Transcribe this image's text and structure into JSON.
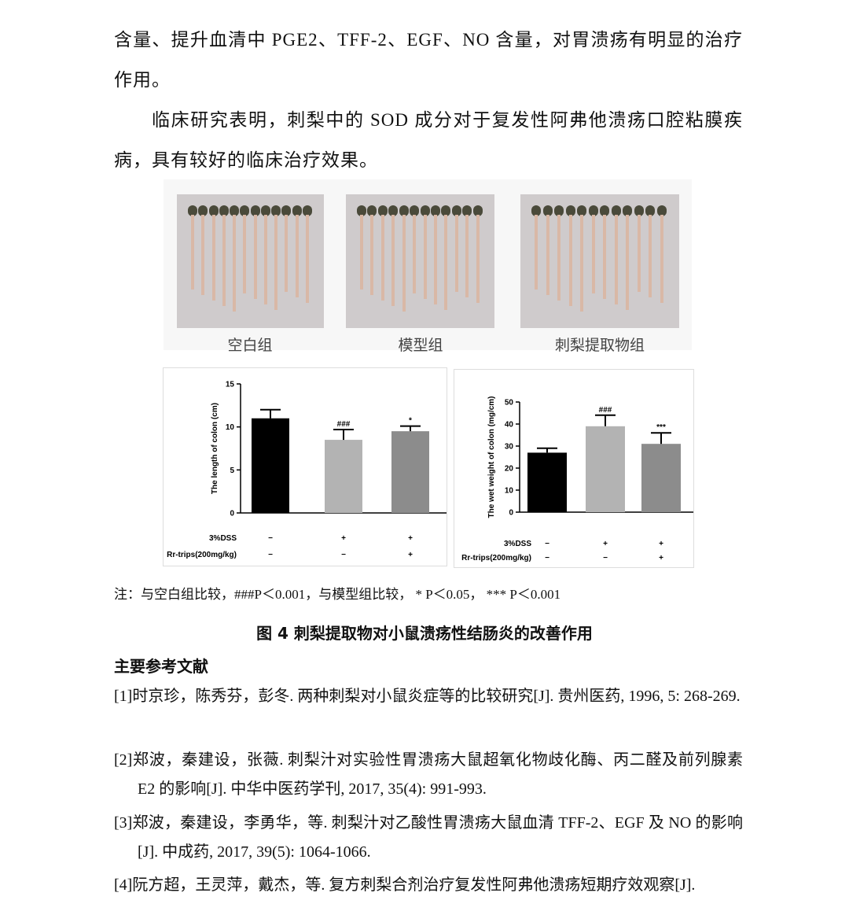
{
  "paragraphs": [
    "含量、提升血清中 PGE2、TFF-2、EGF、NO 含量，对胃溃疡有明显的治疗作用。",
    "临床研究表明，刺梨中的 SOD 成分对于复发性阿弗他溃疡口腔粘膜疾病，具有较好的临床治疗效果。"
  ],
  "photo_labels": [
    "空白组",
    "模型组",
    "刺梨提取物组"
  ],
  "chart_data": [
    {
      "type": "bar",
      "y_label": "The length of colon (cm)",
      "values": [
        11,
        8.5,
        9.5
      ],
      "errors": [
        1.0,
        1.2,
        0.6
      ],
      "significance": [
        null,
        "###",
        "*"
      ],
      "colors": [
        "#000000",
        "#b3b3b3",
        "#8c8c8c"
      ],
      "ylim": [
        0,
        15
      ],
      "yticks": [
        0,
        5,
        10,
        15
      ],
      "treatments": [
        {
          "name": "3%DSS",
          "marks": [
            "−",
            "+",
            "+"
          ]
        },
        {
          "name": "Rr-trips(200mg/kg)",
          "marks": [
            "−",
            "−",
            "+"
          ]
        }
      ]
    },
    {
      "type": "bar",
      "y_label": "The wet weight of colon (mg/cm)",
      "values": [
        27,
        39,
        31
      ],
      "errors": [
        2,
        5,
        5
      ],
      "significance": [
        null,
        "###",
        "***"
      ],
      "colors": [
        "#000000",
        "#b3b3b3",
        "#8c8c8c"
      ],
      "ylim": [
        0,
        50
      ],
      "yticks": [
        0,
        10,
        20,
        30,
        40,
        50
      ],
      "treatments": [
        {
          "name": "3%DSS",
          "marks": [
            "−",
            "+",
            "+"
          ]
        },
        {
          "name": "Rr-trips(200mg/kg)",
          "marks": [
            "−",
            "−",
            "+"
          ]
        }
      ]
    }
  ],
  "note": "注：与空白组比较，###P＜0.001，与模型组比较， * P＜0.05， *** P＜0.001",
  "caption": "图 4 刺梨提取物对小鼠溃疡性结肠炎的改善作用",
  "references_title": "主要参考文献",
  "references": [
    "[1]时京珍，陈秀芬，彭冬. 两种刺梨对小鼠炎症等的比较研究[J]. 贵州医药, 1996, 5: 268-269.",
    "[2]郑波，秦建设，张薇. 刺梨汁对实验性胃溃疡大鼠超氧化物歧化酶、丙二醛及前列腺素 E2 的影响[J]. 中华中医药学刊, 2017, 35(4): 991-993.",
    "[3]郑波，秦建设，李勇华，等. 刺梨汁对乙酸性胃溃疡大鼠血清 TFF-2、EGF 及 NO 的影响[J]. 中成药, 2017, 39(5): 1064-1066.",
    "[4]阮方超，王灵萍，戴杰，等. 复方刺梨合剂治疗复发性阿弗他溃疡短期疗效观察[J]."
  ]
}
